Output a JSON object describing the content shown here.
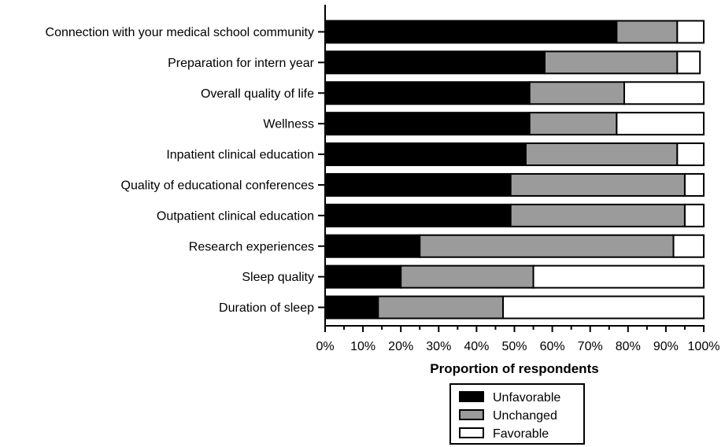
{
  "chart_data": {
    "type": "bar",
    "orientation": "horizontal",
    "stacked": true,
    "categories": [
      "Connection with your medical school community",
      "Preparation for intern year",
      "Overall quality of life",
      "Wellness",
      "Inpatient clinical education",
      "Quality of educational conferences",
      "Outpatient clinical education",
      "Research experiences",
      "Sleep quality",
      "Duration of sleep"
    ],
    "series": [
      {
        "name": "Unfavorable",
        "color": "#000000",
        "values": [
          77,
          58,
          54,
          54,
          53,
          49,
          49,
          25,
          20,
          14
        ]
      },
      {
        "name": "Unchanged",
        "color": "#9b9b9b",
        "values": [
          16,
          35,
          25,
          23,
          40,
          46,
          46,
          67,
          35,
          33
        ]
      },
      {
        "name": "Favorable",
        "color": "#ffffff",
        "values": [
          7,
          6,
          21,
          23,
          7,
          5,
          5,
          8,
          45,
          53
        ]
      }
    ],
    "xlabel": "Proportion of respondents",
    "ylabel": "",
    "xlim": [
      0,
      100
    ],
    "xticks": [
      "0%",
      "10%",
      "20%",
      "30%",
      "40%",
      "50%",
      "60%",
      "70%",
      "80%",
      "90%",
      "100%"
    ],
    "grid": false,
    "legend_position": "bottom"
  }
}
